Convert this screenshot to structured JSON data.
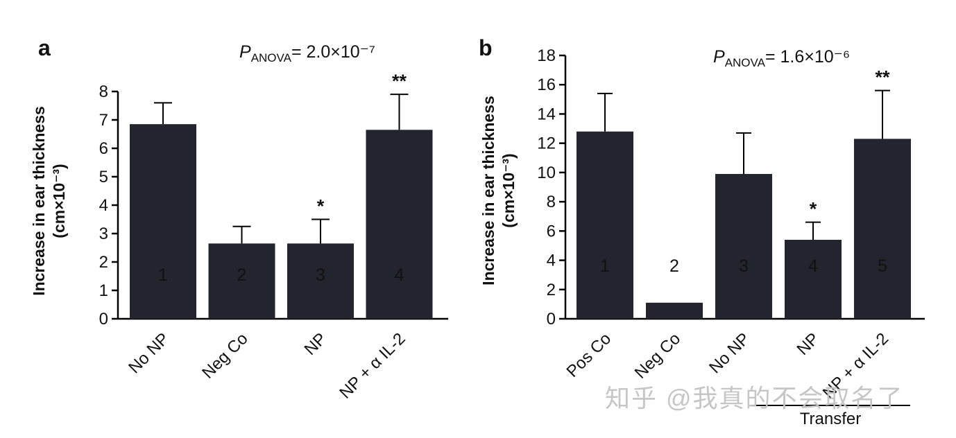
{
  "figure": {
    "watermark": "知乎 @我真的不会取名了"
  },
  "chart_data": [
    {
      "type": "bar",
      "panel_label": "a",
      "title": {
        "p": "P",
        "sub": "ANOVA",
        "rest": "= 2.0×10⁻⁷"
      },
      "ylabel_line1": "Increase in ear thickness",
      "ylabel_line2": "(cm×10⁻³)",
      "ylim": [
        0,
        8
      ],
      "ytick_step": 1,
      "categories": [
        "No NP",
        "Neg Co",
        "NP",
        "NP + α IL-2"
      ],
      "values": [
        6.85,
        2.65,
        2.65,
        6.65
      ],
      "errors_upper": [
        0.75,
        0.6,
        0.85,
        1.25
      ],
      "bar_numbers": [
        "1",
        "2",
        "3",
        "4"
      ],
      "significance": [
        "",
        "",
        "*",
        "**"
      ],
      "bar_color": "#22242e",
      "grid": false,
      "legend": "none"
    },
    {
      "type": "bar",
      "panel_label": "b",
      "title": {
        "p": "P",
        "sub": "ANOVA",
        "rest": "= 1.6×10⁻⁶"
      },
      "ylabel_line1": "Increase in ear thickness",
      "ylabel_line2": "(cm×10⁻³)",
      "ylim": [
        0,
        18
      ],
      "ytick_step": 2,
      "categories": [
        "Pos Co",
        "Neg Co",
        "No NP",
        "NP",
        "NP + α IL-2"
      ],
      "values": [
        12.8,
        1.1,
        9.9,
        5.4,
        12.3
      ],
      "errors_upper": [
        2.6,
        0,
        2.8,
        1.2,
        3.3
      ],
      "bar_numbers": [
        "1",
        "2",
        "3",
        "4",
        "5"
      ],
      "significance": [
        "",
        "",
        "",
        "*",
        "**"
      ],
      "bar_color": "#22242e",
      "grid": false,
      "legend": "none",
      "group_annotation": {
        "label": "Transfer",
        "from_index": 2,
        "to_index": 4
      }
    }
  ]
}
